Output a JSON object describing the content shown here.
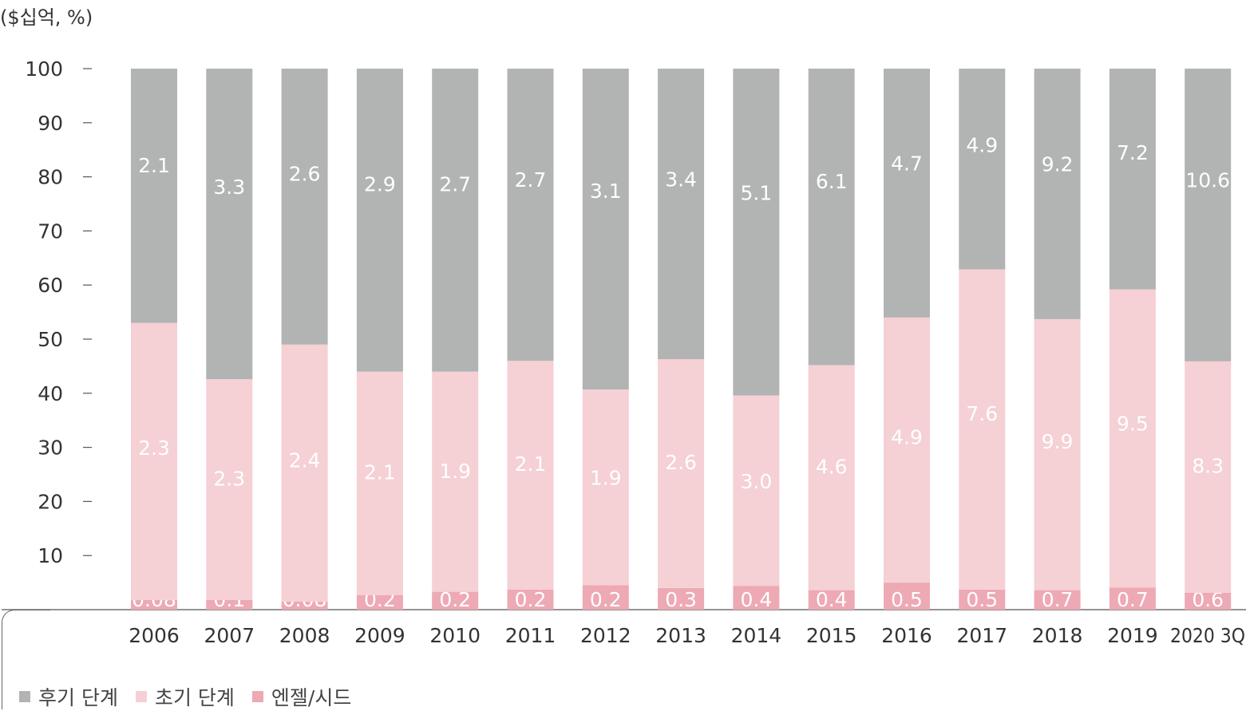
{
  "unit_label": "($십억, %)",
  "colors": {
    "late": "#b2b3b3",
    "early": "#f5d0d4",
    "angel": "#eda9b4",
    "label_text": "#ffffff",
    "axis_text": "#333333"
  },
  "legend": [
    {
      "label": "후기 단계",
      "color": "#b2b3b3"
    },
    {
      "label": "초기 단계",
      "color": "#f5d0d4"
    },
    {
      "label": "엔젤/시드",
      "color": "#eda9b4"
    }
  ],
  "chart_data": {
    "type": "bar",
    "stacked": true,
    "ylim": [
      0,
      100
    ],
    "yticks": [
      10,
      20,
      30,
      40,
      50,
      60,
      70,
      80,
      90,
      100
    ],
    "categories": [
      "2006",
      "2007",
      "2008",
      "2009",
      "2010",
      "2011",
      "2012",
      "2013",
      "2014",
      "2015",
      "2016",
      "2017",
      "2018",
      "2019",
      "2020 3Q"
    ],
    "series": [
      {
        "name": "엔젤/시드",
        "percent": [
          1.8,
          1.8,
          1.5,
          2.7,
          3.3,
          3.7,
          4.5,
          4.0,
          4.4,
          3.6,
          5.0,
          3.7,
          3.6,
          4.1,
          3.1
        ],
        "labels": [
          "0.08",
          "0.1",
          "0.08",
          "0.2",
          "0.2",
          "0.2",
          "0.2",
          "0.3",
          "0.4",
          "0.4",
          "0.5",
          "0.5",
          "0.7",
          "0.7",
          "0.6"
        ]
      },
      {
        "name": "초기 단계",
        "percent": [
          51.2,
          40.8,
          47.5,
          41.3,
          40.7,
          42.3,
          36.2,
          42.3,
          35.2,
          41.6,
          49.0,
          59.2,
          50.1,
          55.1,
          42.8
        ],
        "labels": [
          "2.3",
          "2.3",
          "2.4",
          "2.1",
          "1.9",
          "2.1",
          "1.9",
          "2.6",
          "3.0",
          "4.6",
          "4.9",
          "7.6",
          "9.9",
          "9.5",
          "8.3"
        ]
      },
      {
        "name": "후기 단계",
        "percent": [
          47.0,
          57.4,
          51.0,
          56.0,
          56.0,
          54.0,
          59.3,
          53.7,
          60.4,
          54.8,
          46.0,
          37.1,
          46.3,
          40.8,
          54.1
        ],
        "labels": [
          "2.1",
          "3.3",
          "2.6",
          "2.9",
          "2.7",
          "2.7",
          "3.1",
          "3.4",
          "5.1",
          "6.1",
          "4.7",
          "4.9",
          "9.2",
          "7.2",
          "10.6"
        ]
      }
    ]
  }
}
